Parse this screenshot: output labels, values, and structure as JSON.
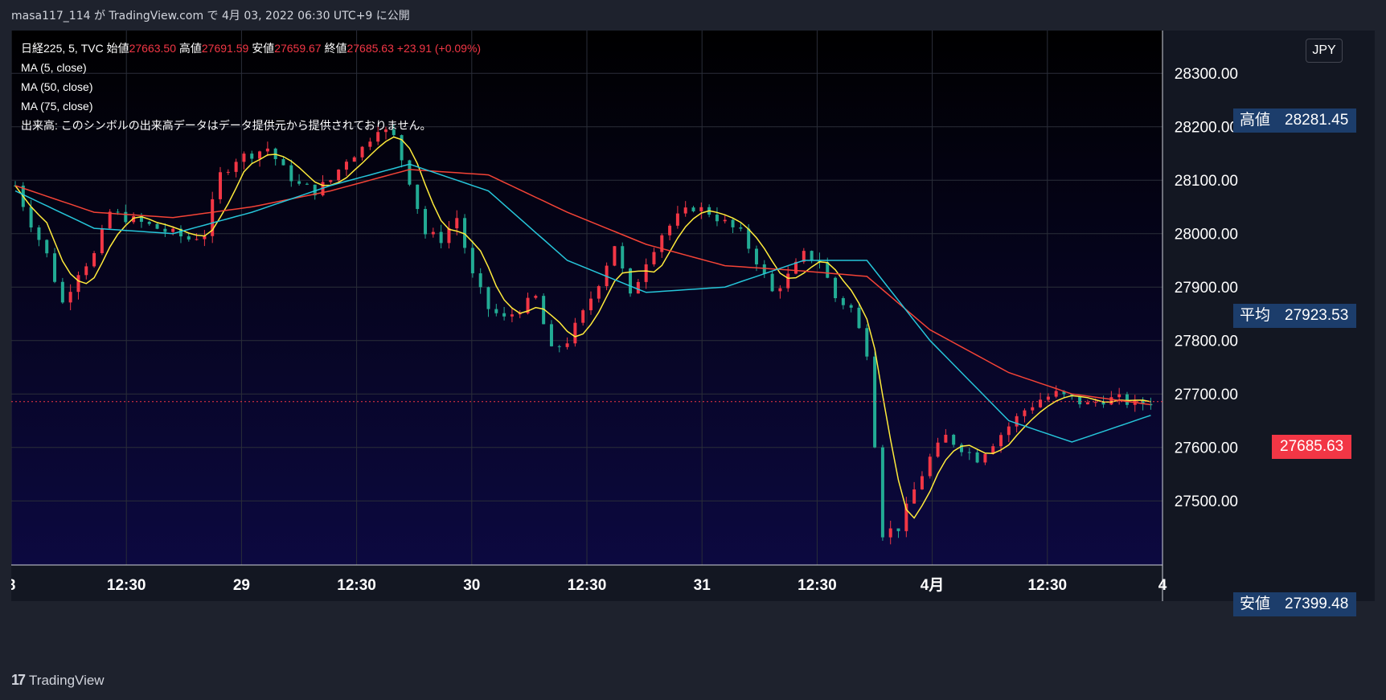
{
  "caption": {
    "author": "masa117_114",
    "text": "masa117_114 が TradingView.com で 4月 03, 2022 06:30 UTC+9 に公開"
  },
  "legend": {
    "symbol": "日経225, 5, TVC",
    "open_label": "始値",
    "open": "27663.50",
    "high_label": "高値",
    "high": "27691.59",
    "low_label": "安値",
    "low": "27659.67",
    "close_label": "終値",
    "close": "27685.63",
    "change": "+23.91 (+0.09%)",
    "ma5": "MA (5, close)",
    "ma50": "MA (50, close)",
    "ma75": "MA (75, close)",
    "volume_note": "出来高: このシンボルの出来高データはデータ提供元から提供されておりません。"
  },
  "currency": "JPY",
  "tags": {
    "high": {
      "label": "高値",
      "value": "28281.45"
    },
    "avg": {
      "label": "平均",
      "value": "27923.53"
    },
    "low": {
      "label": "安値",
      "value": "27399.48"
    },
    "last": {
      "value": "27685.63"
    }
  },
  "brand": {
    "name": "TradingView"
  },
  "colors": {
    "up": "#f23645",
    "down": "#22ab94",
    "ma5": "#ffeb3b",
    "ma50": "#26c6da",
    "ma75": "#f44336",
    "bg_top": "#000000",
    "bg_bottom": "#0c0940"
  },
  "chart_data": {
    "type": "candlestick",
    "y_ticks": [
      "28300.00",
      "28200.00",
      "28100.00",
      "28000.00",
      "27900.00",
      "27800.00",
      "27700.00",
      "27600.00",
      "27500.00"
    ],
    "x_ticks": [
      "8",
      "12:30",
      "29",
      "12:30",
      "30",
      "12:30",
      "31",
      "12:30",
      "4月",
      "12:30",
      "4"
    ],
    "ylim": [
      27380,
      28380
    ],
    "price_path": [
      [
        0,
        28090
      ],
      [
        2,
        28020
      ],
      [
        4,
        27960
      ],
      [
        6,
        27870
      ],
      [
        8,
        27930
      ],
      [
        10,
        27960
      ],
      [
        12,
        28040
      ],
      [
        14,
        28030
      ],
      [
        16,
        28020
      ],
      [
        18,
        28010
      ],
      [
        20,
        28000
      ],
      [
        22,
        27990
      ],
      [
        24,
        28000
      ],
      [
        26,
        28110
      ],
      [
        28,
        28140
      ],
      [
        30,
        28150
      ],
      [
        32,
        28160
      ],
      [
        34,
        28120
      ],
      [
        36,
        28090
      ],
      [
        38,
        28080
      ],
      [
        40,
        28100
      ],
      [
        42,
        28140
      ],
      [
        44,
        28160
      ],
      [
        46,
        28200
      ],
      [
        48,
        28180
      ],
      [
        50,
        28100
      ],
      [
        52,
        28000
      ],
      [
        54,
        27990
      ],
      [
        56,
        28030
      ],
      [
        58,
        27920
      ],
      [
        60,
        27860
      ],
      [
        62,
        27840
      ],
      [
        64,
        27860
      ],
      [
        66,
        27880
      ],
      [
        68,
        27780
      ],
      [
        70,
        27800
      ],
      [
        72,
        27850
      ],
      [
        74,
        27910
      ],
      [
        76,
        27980
      ],
      [
        78,
        27880
      ],
      [
        80,
        27950
      ],
      [
        82,
        28000
      ],
      [
        84,
        28030
      ],
      [
        86,
        28050
      ],
      [
        88,
        28040
      ],
      [
        90,
        28020
      ],
      [
        92,
        28000
      ],
      [
        94,
        27950
      ],
      [
        96,
        27890
      ],
      [
        98,
        27920
      ],
      [
        100,
        27960
      ],
      [
        102,
        27950
      ],
      [
        104,
        27880
      ],
      [
        106,
        27860
      ],
      [
        108,
        27780
      ],
      [
        110,
        27440
      ],
      [
        112,
        27450
      ],
      [
        114,
        27520
      ],
      [
        116,
        27580
      ],
      [
        118,
        27620
      ],
      [
        120,
        27600
      ],
      [
        122,
        27580
      ],
      [
        124,
        27610
      ],
      [
        126,
        27640
      ],
      [
        128,
        27670
      ],
      [
        130,
        27690
      ],
      [
        132,
        27700
      ],
      [
        134,
        27690
      ],
      [
        136,
        27680
      ],
      [
        138,
        27690
      ],
      [
        140,
        27690
      ],
      [
        142,
        27680
      ],
      [
        144,
        27685.63
      ]
    ],
    "ma50_path": [
      [
        0,
        28080
      ],
      [
        10,
        28010
      ],
      [
        20,
        28000
      ],
      [
        30,
        28040
      ],
      [
        40,
        28090
      ],
      [
        50,
        28130
      ],
      [
        60,
        28080
      ],
      [
        70,
        27950
      ],
      [
        80,
        27890
      ],
      [
        90,
        27900
      ],
      [
        100,
        27950
      ],
      [
        108,
        27950
      ],
      [
        116,
        27800
      ],
      [
        126,
        27650
      ],
      [
        134,
        27610
      ],
      [
        144,
        27660
      ]
    ],
    "ma75_path": [
      [
        0,
        28090
      ],
      [
        10,
        28040
      ],
      [
        20,
        28030
      ],
      [
        30,
        28050
      ],
      [
        40,
        28080
      ],
      [
        50,
        28120
      ],
      [
        60,
        28110
      ],
      [
        70,
        28040
      ],
      [
        80,
        27980
      ],
      [
        90,
        27940
      ],
      [
        100,
        27930
      ],
      [
        108,
        27920
      ],
      [
        116,
        27820
      ],
      [
        126,
        27740
      ],
      [
        134,
        27700
      ],
      [
        144,
        27680
      ]
    ],
    "x_tick_index": [
      0,
      14.6,
      29.2,
      43.8,
      58.4,
      73,
      87.6,
      102.2,
      116.8,
      131.4,
      146
    ]
  }
}
